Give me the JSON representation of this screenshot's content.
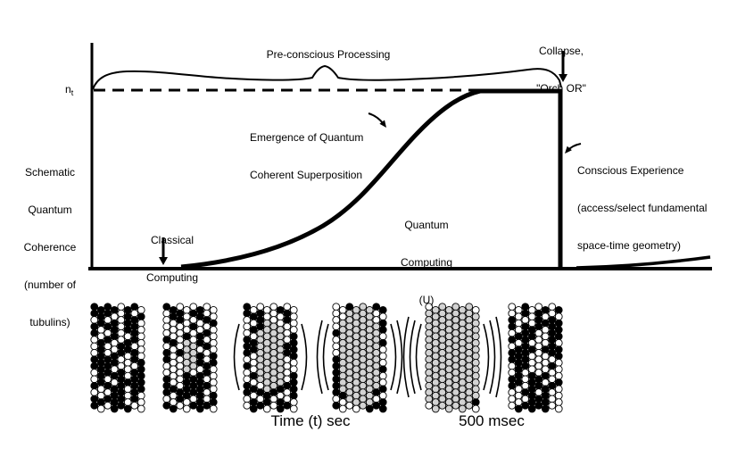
{
  "figure": {
    "y_axis": {
      "label_lines": [
        "Schematic",
        "Quantum",
        "Coherence",
        "(number of",
        "tubulins)"
      ],
      "threshold_label": {
        "base": "n",
        "subscript": "t"
      }
    },
    "annotations": {
      "pre_conscious": "Pre-conscious Processing",
      "collapse": [
        "Collapse,",
        "\"Orch OR\""
      ],
      "emergence": [
        "Emergence of Quantum",
        "Coherent Superposition"
      ],
      "classical": [
        "Classical",
        "Computing"
      ],
      "quantum": [
        "Quantum",
        "Computing",
        "(U)"
      ],
      "conscious": [
        "Conscious Experience",
        "(access/select fundamental",
        "space-time geometry)"
      ]
    }
  },
  "timeline": {
    "time_label": "Time (t) sec",
    "duration_label": "500 msec",
    "microtubule_frames": [
      {
        "parens": 0,
        "coherent_fraction": 0
      },
      {
        "parens": 0,
        "coherent_fraction": 0.05
      },
      {
        "parens": 1,
        "coherent_fraction": 0.25
      },
      {
        "parens": 2,
        "coherent_fraction": 0.5
      },
      {
        "parens": 3,
        "coherent_fraction": 0.92
      },
      {
        "parens": 0,
        "coherent_fraction": 0
      }
    ]
  },
  "colors": {
    "ink": "#000000",
    "background": "#ffffff",
    "coherent_gray": "#d3d3d3"
  }
}
